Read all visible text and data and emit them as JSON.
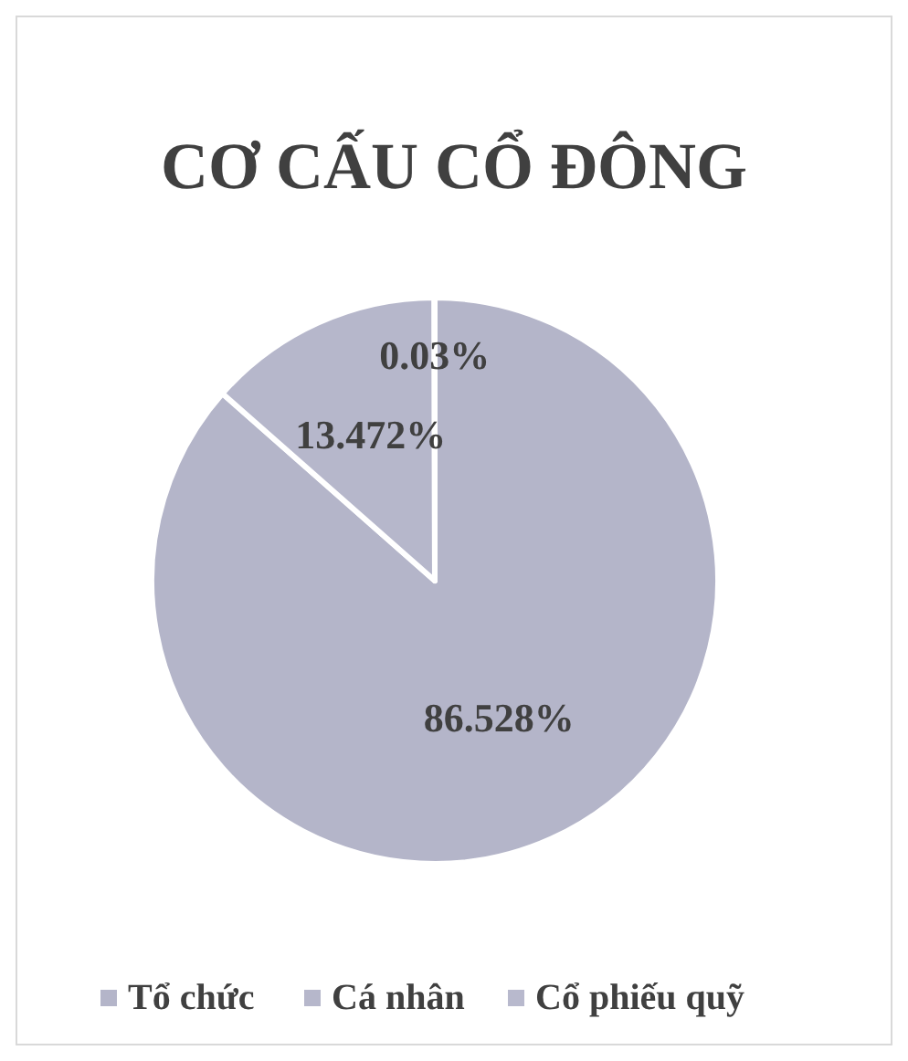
{
  "chart_data": {
    "type": "pie",
    "title": "CƠ CẤU CỔ ĐÔNG",
    "categories": [
      "Tổ chức",
      "Cá nhân",
      "Cổ phiếu quỹ"
    ],
    "values": [
      86.528,
      13.472,
      0.03
    ],
    "value_labels": [
      "86.528%",
      "13.472%",
      "0.03%"
    ],
    "colors": [
      "#b4b5c9",
      "#b6b7cb",
      "#b8b9cd"
    ],
    "legend": "bottom"
  }
}
